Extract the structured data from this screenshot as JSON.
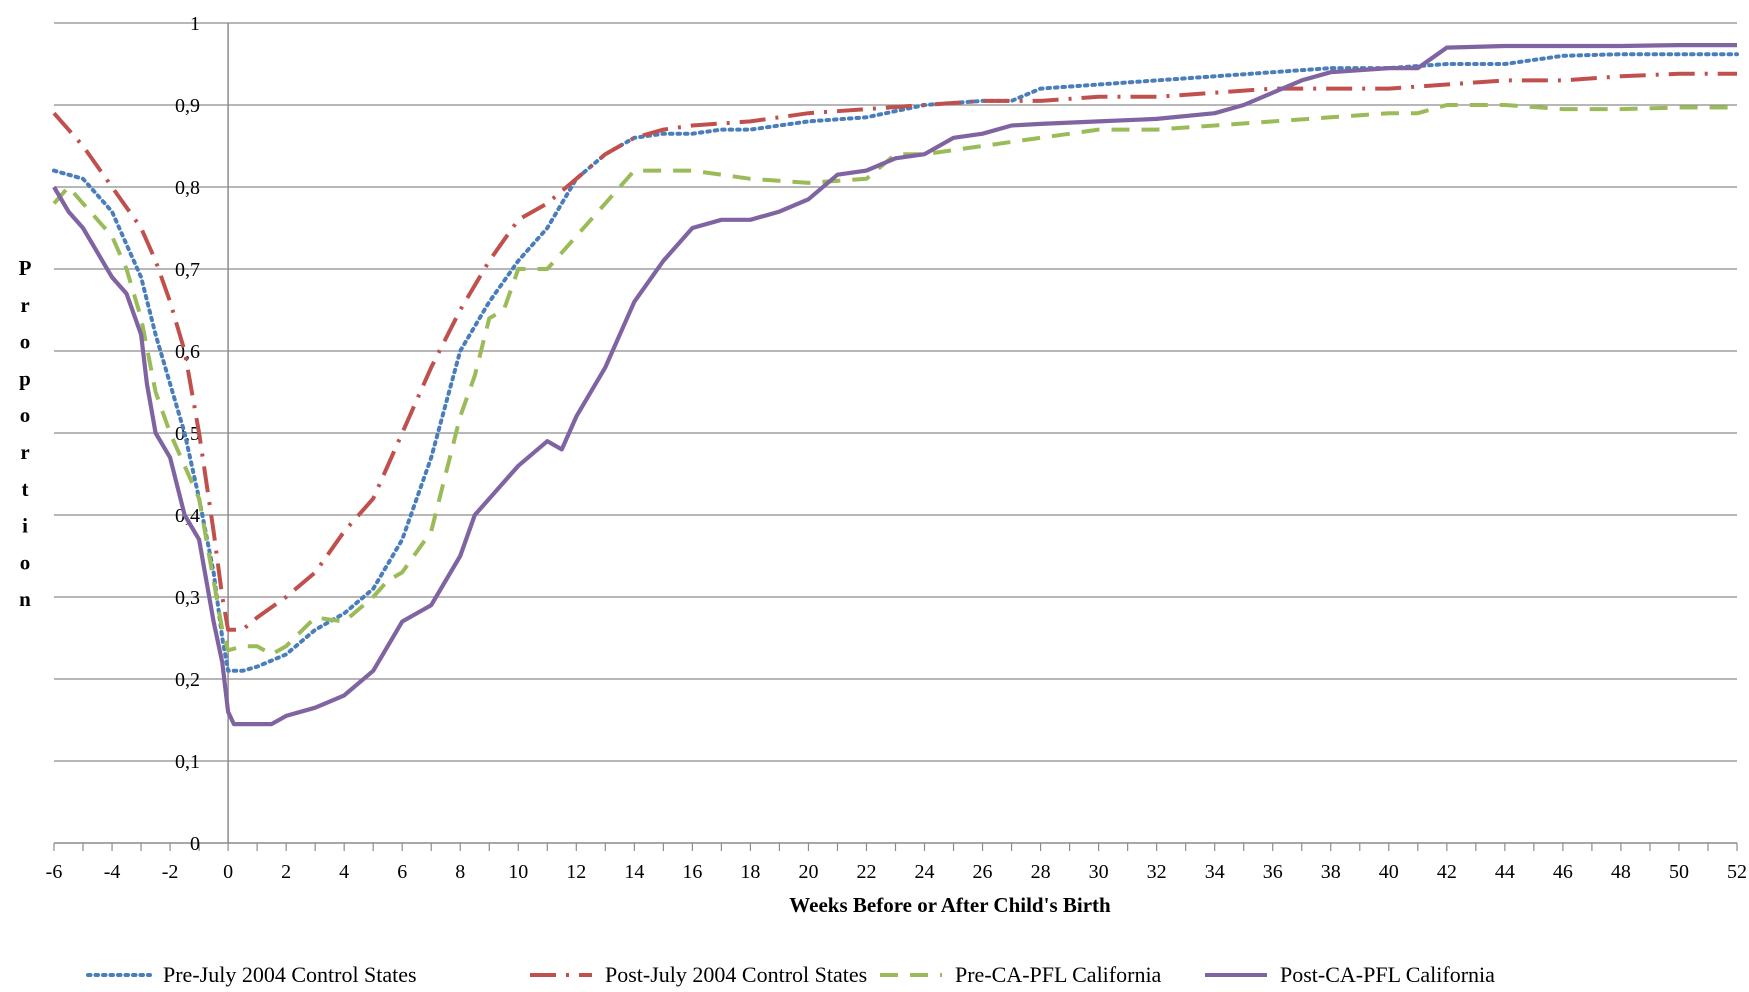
{
  "chart_data": {
    "type": "line",
    "title": "",
    "xlabel": "Weeks Before or After Child's Birth",
    "ylabel": "Proportion",
    "xlim": [
      -6,
      52
    ],
    "ylim": [
      0,
      1
    ],
    "grid": true,
    "legend_position": "bottom",
    "x_ticks": [
      -6,
      -4,
      -2,
      0,
      2,
      4,
      6,
      8,
      10,
      12,
      14,
      16,
      18,
      20,
      22,
      24,
      26,
      28,
      30,
      32,
      34,
      36,
      38,
      40,
      42,
      44,
      46,
      48,
      50,
      52
    ],
    "y_ticks": [
      "0",
      "0,1",
      "0,2",
      "0,3",
      "0,4",
      "0,5",
      "0,6",
      "0,7",
      "0,8",
      "0,9",
      "1"
    ],
    "series": [
      {
        "name": "Pre-July 2004 Control States",
        "color": "#4a7ebb",
        "style": "dotted",
        "points": [
          [
            -6,
            0.82
          ],
          [
            -5,
            0.81
          ],
          [
            -4,
            0.77
          ],
          [
            -3.5,
            0.73
          ],
          [
            -3,
            0.69
          ],
          [
            -2.5,
            0.62
          ],
          [
            -2,
            0.56
          ],
          [
            -1.5,
            0.5
          ],
          [
            -1,
            0.42
          ],
          [
            -0.5,
            0.33
          ],
          [
            -0.2,
            0.25
          ],
          [
            0,
            0.21
          ],
          [
            0.5,
            0.21
          ],
          [
            1,
            0.215
          ],
          [
            2,
            0.23
          ],
          [
            3,
            0.26
          ],
          [
            4,
            0.28
          ],
          [
            5,
            0.31
          ],
          [
            6,
            0.37
          ],
          [
            7,
            0.47
          ],
          [
            8,
            0.6
          ],
          [
            9,
            0.66
          ],
          [
            10,
            0.71
          ],
          [
            11,
            0.75
          ],
          [
            12,
            0.81
          ],
          [
            13,
            0.84
          ],
          [
            14,
            0.86
          ],
          [
            15,
            0.865
          ],
          [
            16,
            0.865
          ],
          [
            17,
            0.87
          ],
          [
            18,
            0.87
          ],
          [
            19,
            0.875
          ],
          [
            20,
            0.88
          ],
          [
            22,
            0.885
          ],
          [
            24,
            0.9
          ],
          [
            26,
            0.905
          ],
          [
            27,
            0.905
          ],
          [
            28,
            0.92
          ],
          [
            30,
            0.925
          ],
          [
            32,
            0.93
          ],
          [
            34,
            0.935
          ],
          [
            36,
            0.94
          ],
          [
            38,
            0.945
          ],
          [
            40,
            0.945
          ],
          [
            42,
            0.95
          ],
          [
            44,
            0.95
          ],
          [
            46,
            0.96
          ],
          [
            48,
            0.962
          ],
          [
            50,
            0.962
          ],
          [
            52,
            0.962
          ]
        ]
      },
      {
        "name": "Post-July 2004 Control States",
        "color": "#c0504d",
        "style": "dash-dot",
        "points": [
          [
            -6,
            0.89
          ],
          [
            -5,
            0.85
          ],
          [
            -4,
            0.8
          ],
          [
            -3,
            0.75
          ],
          [
            -2.5,
            0.71
          ],
          [
            -2,
            0.66
          ],
          [
            -1.5,
            0.6
          ],
          [
            -1,
            0.5
          ],
          [
            -0.5,
            0.38
          ],
          [
            -0.2,
            0.3
          ],
          [
            0,
            0.26
          ],
          [
            0.5,
            0.26
          ],
          [
            1,
            0.275
          ],
          [
            2,
            0.3
          ],
          [
            3,
            0.33
          ],
          [
            4,
            0.38
          ],
          [
            5,
            0.42
          ],
          [
            6,
            0.5
          ],
          [
            7,
            0.58
          ],
          [
            8,
            0.65
          ],
          [
            9,
            0.71
          ],
          [
            10,
            0.76
          ],
          [
            11,
            0.78
          ],
          [
            12,
            0.81
          ],
          [
            13,
            0.84
          ],
          [
            14,
            0.86
          ],
          [
            15,
            0.87
          ],
          [
            16,
            0.875
          ],
          [
            18,
            0.88
          ],
          [
            20,
            0.89
          ],
          [
            22,
            0.895
          ],
          [
            24,
            0.9
          ],
          [
            26,
            0.905
          ],
          [
            28,
            0.905
          ],
          [
            30,
            0.91
          ],
          [
            32,
            0.91
          ],
          [
            34,
            0.915
          ],
          [
            36,
            0.92
          ],
          [
            38,
            0.92
          ],
          [
            40,
            0.92
          ],
          [
            42,
            0.925
          ],
          [
            44,
            0.93
          ],
          [
            46,
            0.93
          ],
          [
            48,
            0.935
          ],
          [
            50,
            0.938
          ],
          [
            52,
            0.938
          ]
        ]
      },
      {
        "name": "Pre-CA-PFL California",
        "color": "#9bbb59",
        "style": "dashed",
        "points": [
          [
            -6,
            0.78
          ],
          [
            -5.5,
            0.8
          ],
          [
            -5,
            0.78
          ],
          [
            -4,
            0.74
          ],
          [
            -3.5,
            0.7
          ],
          [
            -3,
            0.64
          ],
          [
            -2.5,
            0.55
          ],
          [
            -2,
            0.5
          ],
          [
            -1.5,
            0.46
          ],
          [
            -1,
            0.42
          ],
          [
            -0.5,
            0.32
          ],
          [
            -0.2,
            0.26
          ],
          [
            0,
            0.235
          ],
          [
            0.5,
            0.24
          ],
          [
            1,
            0.24
          ],
          [
            1.5,
            0.23
          ],
          [
            2,
            0.24
          ],
          [
            3,
            0.275
          ],
          [
            4,
            0.27
          ],
          [
            5,
            0.3
          ],
          [
            5.5,
            0.32
          ],
          [
            6,
            0.33
          ],
          [
            7,
            0.38
          ],
          [
            8,
            0.52
          ],
          [
            8.5,
            0.57
          ],
          [
            9,
            0.64
          ],
          [
            9.5,
            0.65
          ],
          [
            10,
            0.7
          ],
          [
            11,
            0.7
          ],
          [
            12,
            0.74
          ],
          [
            13,
            0.78
          ],
          [
            14,
            0.82
          ],
          [
            15,
            0.82
          ],
          [
            16,
            0.82
          ],
          [
            18,
            0.81
          ],
          [
            20,
            0.805
          ],
          [
            22,
            0.81
          ],
          [
            23,
            0.84
          ],
          [
            24,
            0.84
          ],
          [
            26,
            0.85
          ],
          [
            28,
            0.86
          ],
          [
            30,
            0.87
          ],
          [
            32,
            0.87
          ],
          [
            34,
            0.875
          ],
          [
            36,
            0.88
          ],
          [
            38,
            0.885
          ],
          [
            40,
            0.89
          ],
          [
            41,
            0.89
          ],
          [
            42,
            0.9
          ],
          [
            44,
            0.9
          ],
          [
            46,
            0.895
          ],
          [
            48,
            0.895
          ],
          [
            50,
            0.897
          ],
          [
            52,
            0.897
          ]
        ]
      },
      {
        "name": "Post-CA-PFL California",
        "color": "#8064a2",
        "style": "solid",
        "points": [
          [
            -6,
            0.8
          ],
          [
            -5.5,
            0.77
          ],
          [
            -5,
            0.75
          ],
          [
            -4.5,
            0.72
          ],
          [
            -4,
            0.69
          ],
          [
            -3.5,
            0.67
          ],
          [
            -3,
            0.62
          ],
          [
            -2.8,
            0.56
          ],
          [
            -2.5,
            0.5
          ],
          [
            -2,
            0.47
          ],
          [
            -1.5,
            0.4
          ],
          [
            -1,
            0.37
          ],
          [
            -0.5,
            0.27
          ],
          [
            -0.2,
            0.22
          ],
          [
            0,
            0.16
          ],
          [
            0.2,
            0.145
          ],
          [
            1,
            0.145
          ],
          [
            1.5,
            0.145
          ],
          [
            2,
            0.155
          ],
          [
            3,
            0.165
          ],
          [
            4,
            0.18
          ],
          [
            5,
            0.21
          ],
          [
            5.5,
            0.24
          ],
          [
            6,
            0.27
          ],
          [
            7,
            0.29
          ],
          [
            8,
            0.35
          ],
          [
            8.5,
            0.4
          ],
          [
            9,
            0.42
          ],
          [
            10,
            0.46
          ],
          [
            11,
            0.49
          ],
          [
            11.5,
            0.48
          ],
          [
            12,
            0.52
          ],
          [
            13,
            0.58
          ],
          [
            14,
            0.66
          ],
          [
            15,
            0.71
          ],
          [
            16,
            0.75
          ],
          [
            17,
            0.76
          ],
          [
            18,
            0.76
          ],
          [
            19,
            0.77
          ],
          [
            20,
            0.785
          ],
          [
            21,
            0.815
          ],
          [
            22,
            0.82
          ],
          [
            23,
            0.835
          ],
          [
            24,
            0.84
          ],
          [
            25,
            0.86
          ],
          [
            26,
            0.865
          ],
          [
            27,
            0.875
          ],
          [
            28,
            0.877
          ],
          [
            30,
            0.88
          ],
          [
            32,
            0.883
          ],
          [
            34,
            0.89
          ],
          [
            35,
            0.9
          ],
          [
            36,
            0.915
          ],
          [
            37,
            0.93
          ],
          [
            38,
            0.94
          ],
          [
            40,
            0.945
          ],
          [
            41,
            0.945
          ],
          [
            42,
            0.97
          ],
          [
            44,
            0.972
          ],
          [
            46,
            0.972
          ],
          [
            48,
            0.972
          ],
          [
            50,
            0.973
          ],
          [
            52,
            0.973
          ]
        ]
      }
    ]
  }
}
